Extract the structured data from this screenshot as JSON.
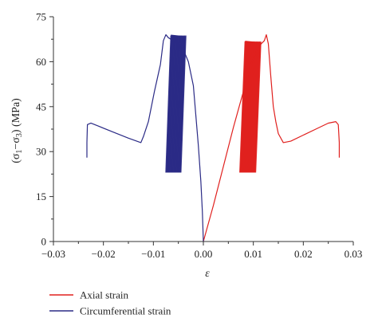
{
  "chart_data": {
    "type": "line",
    "xlabel": "ε",
    "ylabel_parts": [
      "(σ",
      "1",
      "−σ",
      "3",
      ") (MPa)"
    ],
    "xlim": [
      -0.03,
      0.03
    ],
    "ylim": [
      0,
      75
    ],
    "xticks": [
      -0.03,
      -0.02,
      -0.01,
      0.0,
      0.01,
      0.02,
      0.03
    ],
    "xtick_labels": [
      "−0.03",
      "−0.02",
      "−0.01",
      "0.00",
      "0.01",
      "0.02",
      "0.03"
    ],
    "yticks": [
      0,
      15,
      30,
      45,
      60,
      75
    ],
    "ytick_labels": [
      "0",
      "15",
      "30",
      "45",
      "60",
      "75"
    ],
    "grid": false,
    "legend_position": "bottom-left",
    "series": [
      {
        "name": "Axial strain",
        "color": "#e0201e",
        "x": [
          0.0,
          0.002,
          0.004,
          0.006,
          0.008,
          0.0095,
          0.011,
          0.0122,
          0.0126,
          0.013,
          0.0135,
          0.014,
          0.0145,
          0.015,
          0.016,
          0.0175,
          0.02,
          0.0225,
          0.025,
          0.0265,
          0.027,
          0.0272,
          0.0272
        ],
        "y": [
          0,
          12,
          25,
          38,
          50,
          59,
          65,
          67,
          69,
          66,
          55,
          45,
          40,
          36,
          33,
          33.5,
          35.5,
          37.5,
          39.5,
          40,
          39,
          33,
          28
        ],
        "cyclic_band": {
          "x_min": 0.0073,
          "x_max": 0.0115,
          "y_min": 23,
          "y_max": 67
        }
      },
      {
        "name": "Circumferential strain",
        "color": "#2b2b86",
        "x": [
          0.0,
          -0.0002,
          -0.0005,
          -0.001,
          -0.0015,
          -0.002,
          -0.003,
          -0.0045,
          -0.006,
          -0.007,
          -0.0075,
          -0.008,
          -0.0083,
          -0.0086,
          -0.009,
          -0.0098,
          -0.011,
          -0.012,
          -0.0125,
          -0.015,
          -0.018,
          -0.021,
          -0.0225,
          -0.0232,
          -0.0233,
          -0.0233
        ],
        "y": [
          0,
          10,
          20,
          32,
          42,
          52,
          60,
          66,
          67,
          68,
          69,
          67,
          63,
          59,
          56,
          50,
          40,
          35,
          33,
          34.5,
          36.5,
          38.5,
          39.5,
          39,
          33,
          28
        ],
        "cyclic_band": {
          "x_min": -0.0075,
          "x_max": -0.0035,
          "y_min": 23,
          "y_max": 69
        }
      }
    ]
  }
}
